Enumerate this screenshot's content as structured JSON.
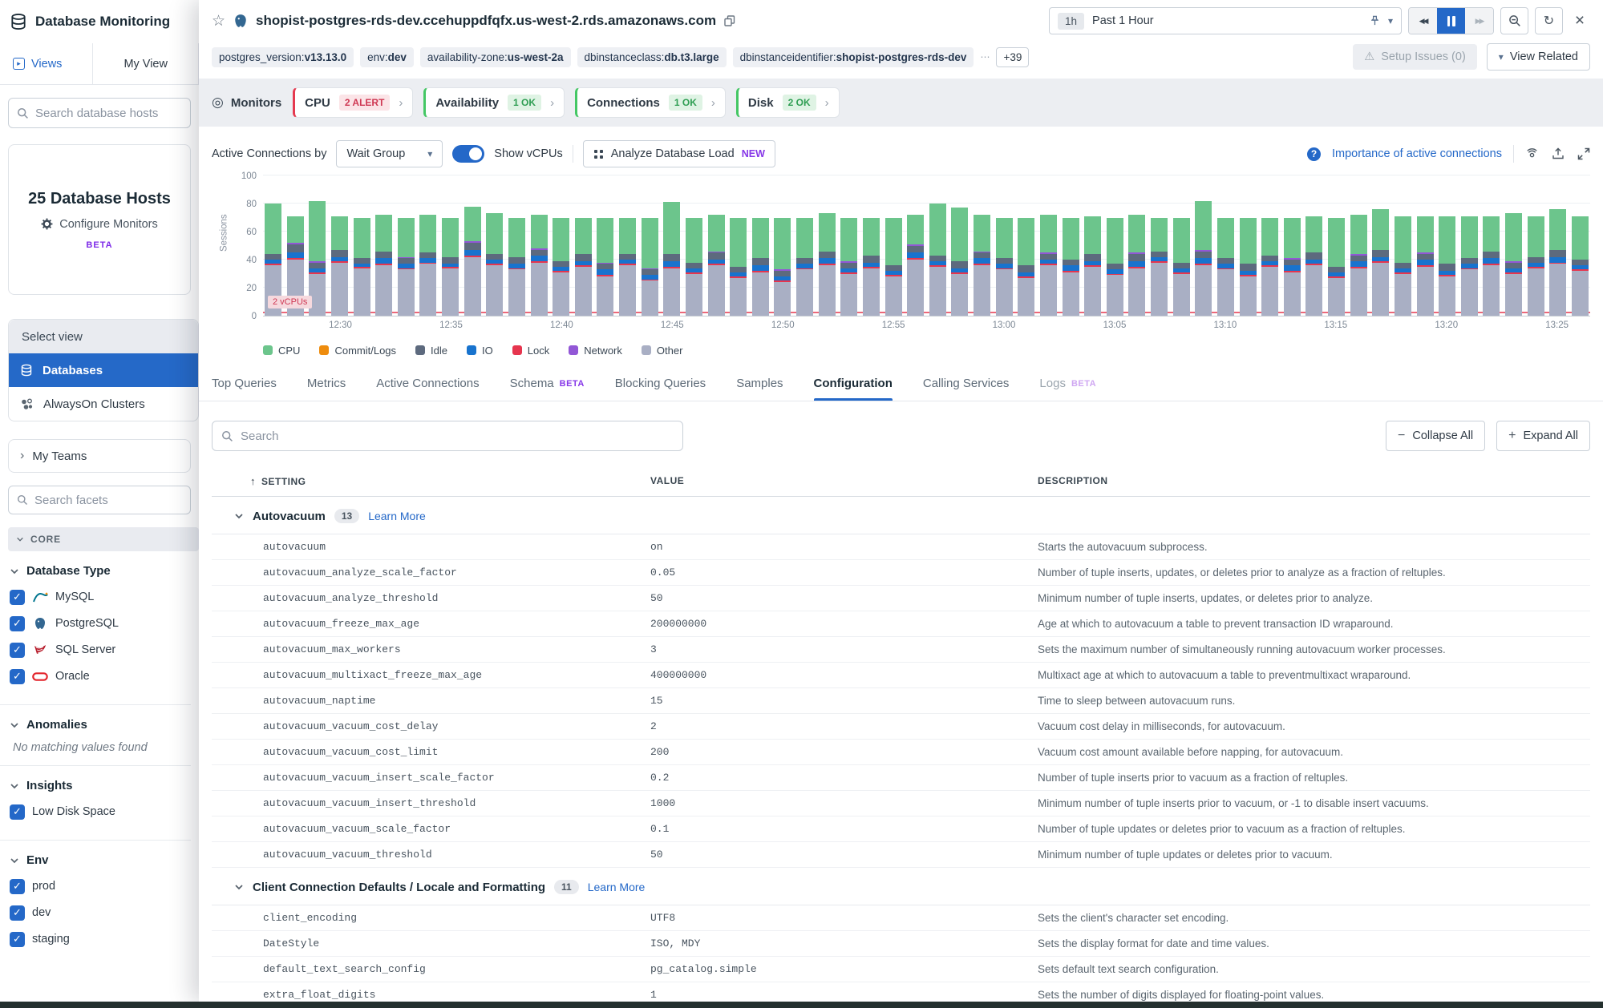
{
  "sidebar": {
    "title": "Database Monitoring",
    "tabs": {
      "views": "Views",
      "my_view": "My View"
    },
    "search_placeholder": "Search database hosts",
    "hosts_card": {
      "count_label": "25 Database Hosts",
      "configure": "Configure Monitors",
      "beta": "BETA"
    },
    "select_view": {
      "label": "Select view",
      "items": [
        {
          "label": "Databases",
          "icon": "database-icon",
          "active": true
        },
        {
          "label": "AlwaysOn Clusters",
          "icon": "cluster-icon",
          "active": false
        }
      ]
    },
    "my_teams": "My Teams",
    "facet_search_placeholder": "Search facets",
    "core_label": "CORE",
    "facet_groups": [
      {
        "title": "Database Type",
        "items": [
          {
            "label": "MySQL",
            "icon": "mysql-icon",
            "checked": true
          },
          {
            "label": "PostgreSQL",
            "icon": "postgresql-icon",
            "checked": true
          },
          {
            "label": "SQL Server",
            "icon": "sqlserver-icon",
            "checked": true
          },
          {
            "label": "Oracle",
            "icon": "oracle-icon",
            "checked": true
          }
        ]
      },
      {
        "title": "Anomalies",
        "empty": "No matching values found"
      },
      {
        "title": "Insights",
        "items": [
          {
            "label": "Low Disk Space",
            "checked": true
          }
        ]
      },
      {
        "title": "Env",
        "items": [
          {
            "label": "prod",
            "checked": true
          },
          {
            "label": "dev",
            "checked": true
          },
          {
            "label": "staging",
            "checked": true
          }
        ]
      }
    ]
  },
  "header": {
    "title": "shopist-postgres-rds-dev.ccehuppdfqfx.us-west-2.rds.amazonaws.com",
    "time_range": {
      "chip": "1h",
      "label": "Past 1 Hour"
    },
    "tags": [
      {
        "label": "postgres_version:",
        "value": "v13.13.0"
      },
      {
        "label": "env:",
        "value": "dev"
      },
      {
        "label": "availability-zone:",
        "value": "us-west-2a"
      },
      {
        "label": "dbinstanceclass:",
        "value": "db.t3.large"
      },
      {
        "label": "dbinstanceidentifier:",
        "value": "shopist-postgres-rds-dev"
      }
    ],
    "more_tags": "+39",
    "setup_issues": "Setup Issues (0)",
    "view_related": "View Related"
  },
  "monitors": {
    "label": "Monitors",
    "cards": [
      {
        "name": "CPU",
        "badge": "2 ALERT",
        "status": "alert"
      },
      {
        "name": "Availability",
        "badge": "1 OK",
        "status": "ok"
      },
      {
        "name": "Connections",
        "badge": "1 OK",
        "status": "ok"
      },
      {
        "name": "Disk",
        "badge": "2 OK",
        "status": "ok"
      }
    ]
  },
  "chart": {
    "controls": {
      "by_label": "Active Connections by",
      "group_select": "Wait Group",
      "show_vcpus": "Show vCPUs",
      "analyze": "Analyze Database Load",
      "new_badge": "NEW",
      "importance_link": "Importance of active connections"
    },
    "vcpu_marker": {
      "label": "2 vCPUs",
      "value": 2
    },
    "chart_data": {
      "type": "bar",
      "stacked": true,
      "title": "Active Connections by Wait Group",
      "ylabel": "Sessions",
      "ylim": [
        0,
        100
      ],
      "y_ticks": [
        0,
        20,
        40,
        60,
        80,
        100
      ],
      "x_labels": [
        "12:30",
        "12:35",
        "12:40",
        "12:45",
        "12:50",
        "12:55",
        "13:00",
        "13:05",
        "13:10",
        "13:15",
        "13:20",
        "13:25"
      ],
      "first_label_bar_index": 3,
      "label_step": 5,
      "stack_order": [
        "other",
        "lock",
        "io",
        "idle",
        "network",
        "cpu"
      ],
      "colors": {
        "cpu": "#6CC58C",
        "commit": "#EE8C0D",
        "idle": "#5D6A7E",
        "io": "#1873CE",
        "lock": "#E6354E",
        "network": "#9257D6",
        "other": "#A9AFC4"
      },
      "legend": [
        {
          "label": "CPU",
          "key": "cpu"
        },
        {
          "label": "Commit/Logs",
          "key": "commit"
        },
        {
          "label": "Idle",
          "key": "idle"
        },
        {
          "label": "IO",
          "key": "io"
        },
        {
          "label": "Lock",
          "key": "lock"
        },
        {
          "label": "Network",
          "key": "network"
        },
        {
          "label": "Other",
          "key": "other"
        }
      ],
      "bars": [
        [
          36,
          1,
          3,
          4,
          0,
          36
        ],
        [
          40,
          1,
          4,
          6,
          1,
          19
        ],
        [
          30,
          1,
          3,
          4,
          1,
          43
        ],
        [
          38,
          1,
          3,
          5,
          0,
          24
        ],
        [
          34,
          1,
          2,
          4,
          0,
          29
        ],
        [
          36,
          1,
          4,
          5,
          0,
          26
        ],
        [
          33,
          1,
          3,
          4,
          1,
          28
        ],
        [
          37,
          1,
          3,
          4,
          0,
          27
        ],
        [
          34,
          1,
          2,
          5,
          0,
          28
        ],
        [
          42,
          1,
          4,
          5,
          1,
          25
        ],
        [
          36,
          1,
          3,
          4,
          0,
          29
        ],
        [
          33,
          1,
          3,
          5,
          0,
          28
        ],
        [
          38,
          1,
          4,
          4,
          1,
          24
        ],
        [
          31,
          1,
          3,
          4,
          0,
          31
        ],
        [
          35,
          1,
          3,
          5,
          0,
          26
        ],
        [
          28,
          1,
          4,
          4,
          1,
          32
        ],
        [
          36,
          1,
          3,
          4,
          0,
          26
        ],
        [
          25,
          1,
          3,
          4,
          1,
          36
        ],
        [
          34,
          1,
          4,
          5,
          0,
          37
        ],
        [
          30,
          1,
          3,
          4,
          0,
          32
        ],
        [
          36,
          1,
          3,
          5,
          1,
          26
        ],
        [
          27,
          1,
          3,
          4,
          0,
          35
        ],
        [
          31,
          1,
          4,
          5,
          0,
          29
        ],
        [
          24,
          1,
          3,
          4,
          1,
          37
        ],
        [
          33,
          1,
          3,
          4,
          0,
          29
        ],
        [
          36,
          1,
          4,
          5,
          0,
          27
        ],
        [
          30,
          1,
          3,
          4,
          1,
          31
        ],
        [
          34,
          1,
          3,
          5,
          0,
          27
        ],
        [
          28,
          1,
          3,
          4,
          0,
          34
        ],
        [
          40,
          1,
          4,
          5,
          1,
          21
        ],
        [
          35,
          1,
          3,
          4,
          0,
          37
        ],
        [
          30,
          1,
          3,
          5,
          0,
          38
        ],
        [
          36,
          1,
          4,
          4,
          1,
          26
        ],
        [
          33,
          1,
          3,
          4,
          0,
          29
        ],
        [
          27,
          1,
          3,
          5,
          0,
          34
        ],
        [
          36,
          1,
          3,
          4,
          1,
          27
        ],
        [
          31,
          1,
          4,
          4,
          0,
          30
        ],
        [
          35,
          1,
          3,
          5,
          0,
          27
        ],
        [
          29,
          1,
          3,
          4,
          0,
          33
        ],
        [
          34,
          1,
          4,
          5,
          1,
          27
        ],
        [
          38,
          1,
          3,
          4,
          0,
          24
        ],
        [
          30,
          1,
          3,
          4,
          0,
          32
        ],
        [
          36,
          1,
          4,
          5,
          1,
          35
        ],
        [
          33,
          1,
          3,
          4,
          0,
          29
        ],
        [
          28,
          1,
          3,
          5,
          0,
          33
        ],
        [
          35,
          1,
          3,
          4,
          0,
          27
        ],
        [
          31,
          1,
          4,
          4,
          1,
          29
        ],
        [
          36,
          1,
          3,
          5,
          0,
          26
        ],
        [
          27,
          1,
          3,
          4,
          0,
          35
        ],
        [
          34,
          1,
          4,
          4,
          1,
          28
        ],
        [
          38,
          1,
          3,
          5,
          0,
          29
        ],
        [
          30,
          1,
          3,
          4,
          0,
          33
        ],
        [
          35,
          1,
          4,
          4,
          1,
          26
        ],
        [
          28,
          1,
          3,
          5,
          0,
          34
        ],
        [
          33,
          1,
          3,
          4,
          0,
          30
        ],
        [
          36,
          1,
          4,
          5,
          0,
          25
        ],
        [
          30,
          1,
          3,
          4,
          1,
          34
        ],
        [
          34,
          1,
          3,
          4,
          0,
          29
        ],
        [
          37,
          1,
          4,
          5,
          0,
          29
        ],
        [
          32,
          1,
          3,
          4,
          0,
          31
        ]
      ]
    }
  },
  "tabs": [
    {
      "label": "Top Queries"
    },
    {
      "label": "Metrics"
    },
    {
      "label": "Active Connections"
    },
    {
      "label": "Schema",
      "beta": "BETA"
    },
    {
      "label": "Blocking Queries"
    },
    {
      "label": "Samples"
    },
    {
      "label": "Configuration",
      "active": true
    },
    {
      "label": "Calling Services"
    },
    {
      "label": "Logs",
      "beta": "BETA",
      "muted": true
    }
  ],
  "config": {
    "search_placeholder": "Search",
    "collapse_all": "Collapse All",
    "expand_all": "Expand All",
    "columns": {
      "setting": "SETTING",
      "value": "VALUE",
      "description": "DESCRIPTION"
    },
    "groups": [
      {
        "title": "Autovacuum",
        "count": "13",
        "learn_more": "Learn More",
        "rows": [
          {
            "setting": "autovacuum",
            "value": "on",
            "description": "Starts the autovacuum subprocess."
          },
          {
            "setting": "autovacuum_analyze_scale_factor",
            "value": "0.05",
            "description": "Number of tuple inserts, updates, or deletes prior to analyze as a fraction of reltuples."
          },
          {
            "setting": "autovacuum_analyze_threshold",
            "value": "50",
            "description": "Minimum number of tuple inserts, updates, or deletes prior to analyze."
          },
          {
            "setting": "autovacuum_freeze_max_age",
            "value": "200000000",
            "description": "Age at which to autovacuum a table to prevent transaction ID wraparound."
          },
          {
            "setting": "autovacuum_max_workers",
            "value": "3",
            "description": "Sets the maximum number of simultaneously running autovacuum worker processes."
          },
          {
            "setting": "autovacuum_multixact_freeze_max_age",
            "value": "400000000",
            "description": "Multixact age at which to autovacuum a table to preventmultixact wraparound."
          },
          {
            "setting": "autovacuum_naptime",
            "value": "15",
            "description": "Time to sleep between autovacuum runs."
          },
          {
            "setting": "autovacuum_vacuum_cost_delay",
            "value": "2",
            "description": "Vacuum cost delay in milliseconds, for autovacuum."
          },
          {
            "setting": "autovacuum_vacuum_cost_limit",
            "value": "200",
            "description": "Vacuum cost amount available before napping, for autovacuum."
          },
          {
            "setting": "autovacuum_vacuum_insert_scale_factor",
            "value": "0.2",
            "description": "Number of tuple inserts prior to vacuum as a fraction of reltuples."
          },
          {
            "setting": "autovacuum_vacuum_insert_threshold",
            "value": "1000",
            "description": "Minimum number of tuple inserts prior to vacuum, or -1 to disable insert vacuums."
          },
          {
            "setting": "autovacuum_vacuum_scale_factor",
            "value": "0.1",
            "description": "Number of tuple updates or deletes prior to vacuum as a fraction of reltuples."
          },
          {
            "setting": "autovacuum_vacuum_threshold",
            "value": "50",
            "description": "Minimum number of tuple updates or deletes prior to vacuum."
          }
        ]
      },
      {
        "title": "Client Connection Defaults / Locale and Formatting",
        "count": "11",
        "learn_more": "Learn More",
        "rows": [
          {
            "setting": "client_encoding",
            "value": "UTF8",
            "description": "Sets the client's character set encoding."
          },
          {
            "setting": "DateStyle",
            "value": "ISO, MDY",
            "description": "Sets the display format for date and time values."
          },
          {
            "setting": "default_text_search_config",
            "value": "pg_catalog.simple",
            "description": "Sets default text search configuration."
          },
          {
            "setting": "extra_float_digits",
            "value": "1",
            "description": "Sets the number of digits displayed for floating-point values."
          }
        ]
      }
    ]
  }
}
